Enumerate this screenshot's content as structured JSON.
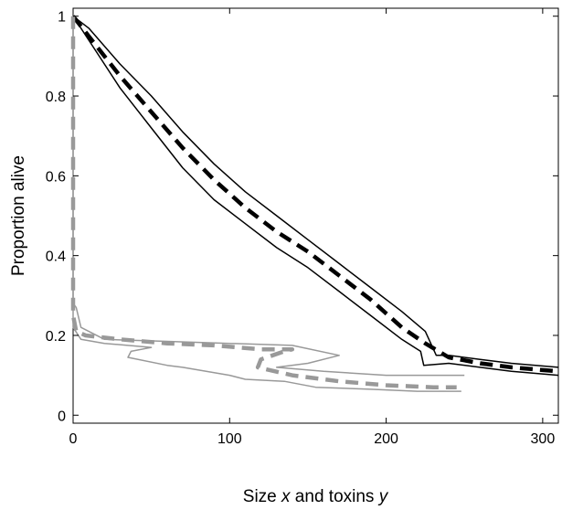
{
  "chart_data": {
    "type": "line",
    "title": "",
    "xlabel_parts": [
      {
        "text": "Size ",
        "italic": false
      },
      {
        "text": "x",
        "italic": true
      },
      {
        "text": " and toxins ",
        "italic": false
      },
      {
        "text": "y",
        "italic": true
      }
    ],
    "ylabel": "Proportion alive",
    "xlim": [
      0,
      310
    ],
    "ylim": [
      -0.02,
      1.02
    ],
    "xticks": [
      {
        "value": 0,
        "label": "0"
      },
      {
        "value": 100,
        "label": "100"
      },
      {
        "value": 200,
        "label": "200"
      },
      {
        "value": 300,
        "label": "300"
      }
    ],
    "yticks": [
      {
        "value": 0,
        "label": "0"
      },
      {
        "value": 0.2,
        "label": "0.2"
      },
      {
        "value": 0.4,
        "label": "0.4"
      },
      {
        "value": 0.6,
        "label": "0.6"
      },
      {
        "value": 0.8,
        "label": "0.8"
      },
      {
        "value": 1,
        "label": "1"
      }
    ],
    "grid": false,
    "series": [
      {
        "color": "#000000",
        "style": "dashed",
        "width": "thick",
        "x": [
          0,
          10,
          30,
          50,
          70,
          90,
          110,
          130,
          150,
          170,
          190,
          210,
          225,
          240,
          260,
          280,
          310
        ],
        "y": [
          1.0,
          0.95,
          0.85,
          0.76,
          0.67,
          0.59,
          0.52,
          0.46,
          0.41,
          0.35,
          0.29,
          0.22,
          0.18,
          0.145,
          0.13,
          0.12,
          0.11
        ]
      },
      {
        "color": "#000000",
        "style": "solid",
        "width": "thin",
        "x": [
          0,
          10,
          30,
          50,
          70,
          90,
          110,
          130,
          150,
          170,
          190,
          210,
          225,
          232,
          240,
          260,
          280,
          310
        ],
        "y": [
          1.0,
          0.97,
          0.88,
          0.8,
          0.71,
          0.63,
          0.56,
          0.5,
          0.44,
          0.38,
          0.32,
          0.26,
          0.21,
          0.15,
          0.15,
          0.14,
          0.13,
          0.12
        ]
      },
      {
        "color": "#000000",
        "style": "solid",
        "width": "thin",
        "x": [
          0,
          10,
          30,
          50,
          70,
          90,
          110,
          130,
          150,
          170,
          190,
          210,
          222,
          224,
          240,
          260,
          280,
          310
        ],
        "y": [
          1.0,
          0.94,
          0.82,
          0.72,
          0.62,
          0.54,
          0.48,
          0.42,
          0.37,
          0.31,
          0.25,
          0.19,
          0.16,
          0.125,
          0.13,
          0.12,
          0.11,
          0.1
        ]
      },
      {
        "color": "#999999",
        "style": "dashed",
        "width": "thick",
        "x": [
          0,
          0,
          0,
          1,
          2,
          5,
          8,
          30,
          60,
          90,
          120,
          140,
          135,
          120,
          118,
          140,
          170,
          200,
          230,
          245
        ],
        "y": [
          1.0,
          0.6,
          0.25,
          0.23,
          0.21,
          0.205,
          0.2,
          0.19,
          0.18,
          0.175,
          0.165,
          0.165,
          0.16,
          0.14,
          0.12,
          0.1,
          0.085,
          0.075,
          0.07,
          0.07
        ]
      },
      {
        "color": "#999999",
        "style": "solid",
        "width": "thin",
        "x": [
          0,
          0,
          2,
          5,
          20,
          60,
          100,
          140,
          170,
          150,
          130,
          160,
          200,
          250
        ],
        "y": [
          1.0,
          0.28,
          0.27,
          0.22,
          0.19,
          0.185,
          0.18,
          0.175,
          0.15,
          0.13,
          0.12,
          0.11,
          0.1,
          0.1
        ]
      },
      {
        "color": "#999999",
        "style": "solid",
        "width": "thin",
        "x": [
          0,
          0,
          5,
          20,
          50,
          37,
          35,
          60,
          70,
          100,
          110,
          135,
          155,
          190,
          220,
          248
        ],
        "y": [
          1.0,
          0.22,
          0.19,
          0.18,
          0.17,
          0.16,
          0.145,
          0.125,
          0.12,
          0.1,
          0.09,
          0.085,
          0.07,
          0.065,
          0.06,
          0.06
        ]
      }
    ]
  }
}
